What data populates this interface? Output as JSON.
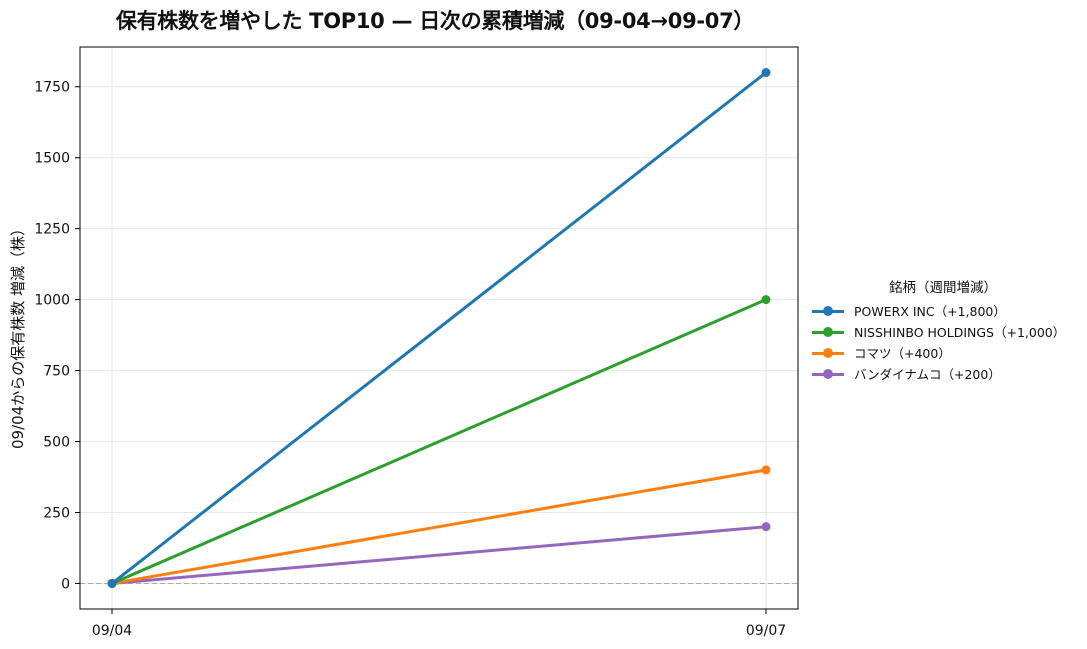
{
  "chart_data": {
    "type": "line",
    "title": "保有株数を増やした TOP10 — 日次の累積増減（09-04→09-07）",
    "xlabel": "",
    "ylabel": "09/04からの保有株数 増減（株）",
    "x": [
      "09/04",
      "09/07"
    ],
    "ylim": [
      -90,
      1890
    ],
    "yticks": [
      0,
      250,
      500,
      750,
      1000,
      1250,
      1500,
      1750
    ],
    "grid": true,
    "zero_line": true,
    "legend_title": "銘柄（週間増減）",
    "legend_position": "right",
    "series": [
      {
        "name": "POWERX INC（+1,800）",
        "color": "#1f77b4",
        "values": [
          0,
          1800
        ]
      },
      {
        "name": "NISSHINBO HOLDINGS（+1,000）",
        "color": "#2ca02c",
        "values": [
          0,
          1000
        ]
      },
      {
        "name": "コマツ（+400）",
        "color": "#ff7f0e",
        "values": [
          0,
          400
        ]
      },
      {
        "name": "バンダイナムコ（+200）",
        "color": "#9467bd",
        "values": [
          0,
          200
        ]
      }
    ]
  }
}
